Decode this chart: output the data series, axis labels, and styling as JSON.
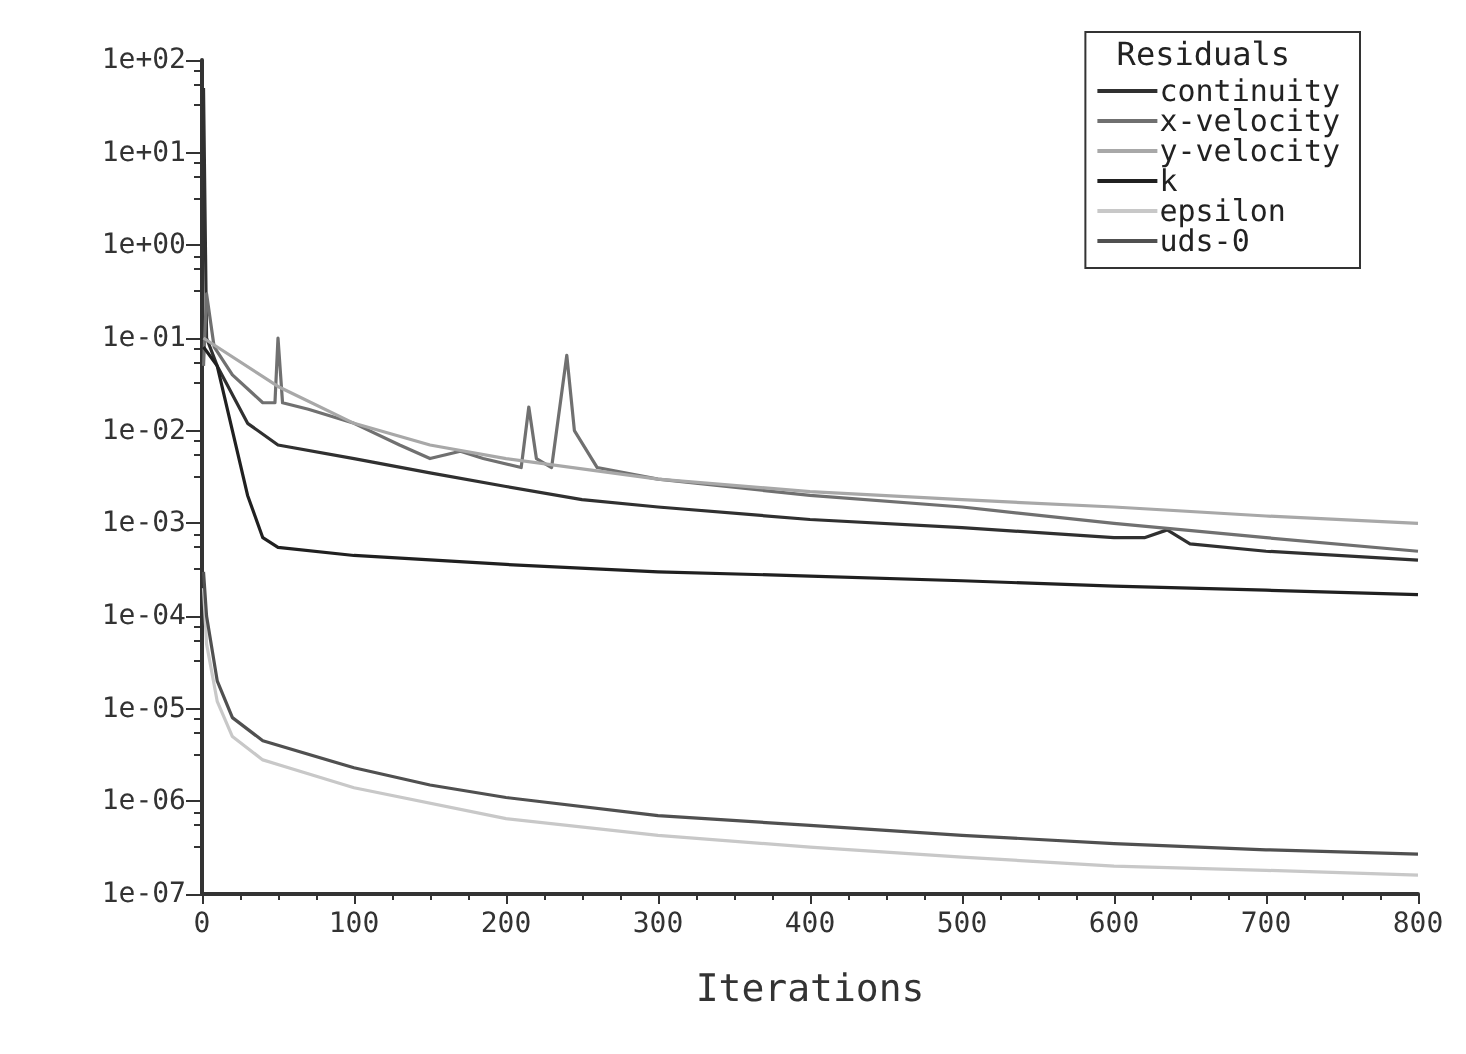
{
  "chart_data": {
    "type": "line",
    "xlabel": "Iterations",
    "legend_title": "Residuals",
    "legend": "top right",
    "grid": false,
    "log": "y",
    "marker": "none",
    "line_style": "solid",
    "xlim": [
      0,
      800
    ],
    "xticks": [
      0,
      100,
      200,
      300,
      400,
      500,
      600,
      700,
      800
    ],
    "ylim": [
      1e-07,
      100
    ],
    "yticks": [
      {
        "value": 100,
        "label": "1e+02"
      },
      {
        "value": 10,
        "label": "1e+01"
      },
      {
        "value": 1,
        "label": "1e+00"
      },
      {
        "value": 0.1,
        "label": "1e-01"
      },
      {
        "value": 0.01,
        "label": "1e-02"
      },
      {
        "value": 0.001,
        "label": "1e-03"
      },
      {
        "value": 0.0001,
        "label": "1e-04"
      },
      {
        "value": 1e-05,
        "label": "1e-05"
      },
      {
        "value": 1e-06,
        "label": "1e-06"
      },
      {
        "value": 1e-07,
        "label": "1e-07"
      }
    ],
    "series": [
      {
        "name": "continuity",
        "color": "#303030",
        "x": [
          1,
          3,
          10,
          30,
          50,
          100,
          150,
          200,
          250,
          300,
          400,
          500,
          600,
          620,
          635,
          650,
          700,
          800
        ],
        "values": [
          50,
          0.1,
          0.05,
          0.012,
          0.007,
          0.005,
          0.0035,
          0.0025,
          0.0018,
          0.0015,
          0.0011,
          0.0009,
          0.0007,
          0.0007,
          0.00085,
          0.0006,
          0.0005,
          0.0004
        ]
      },
      {
        "name": "x-velocity",
        "color": "#707070",
        "x": [
          1,
          3,
          8,
          20,
          40,
          48,
          50,
          53,
          70,
          100,
          130,
          150,
          170,
          185,
          210,
          215,
          220,
          230,
          240,
          245,
          260,
          300,
          400,
          500,
          600,
          700,
          800
        ],
        "values": [
          0.05,
          0.3,
          0.08,
          0.04,
          0.02,
          0.02,
          0.1,
          0.02,
          0.017,
          0.012,
          0.007,
          0.005,
          0.006,
          0.005,
          0.004,
          0.018,
          0.005,
          0.004,
          0.065,
          0.01,
          0.004,
          0.003,
          0.002,
          0.0015,
          0.001,
          0.0007,
          0.0005
        ]
      },
      {
        "name": "y-velocity",
        "color": "#a8a8a8",
        "x": [
          1,
          10,
          50,
          100,
          150,
          200,
          300,
          400,
          500,
          600,
          700,
          800
        ],
        "values": [
          0.1,
          0.08,
          0.03,
          0.012,
          0.007,
          0.005,
          0.003,
          0.0022,
          0.0018,
          0.0015,
          0.0012,
          0.001
        ]
      },
      {
        "name": "k",
        "color": "#202020",
        "x": [
          1,
          10,
          20,
          30,
          40,
          50,
          100,
          200,
          300,
          400,
          500,
          600,
          700,
          800
        ],
        "values": [
          0.08,
          0.05,
          0.01,
          0.002,
          0.0007,
          0.00055,
          0.00045,
          0.00036,
          0.0003,
          0.00027,
          0.00024,
          0.00021,
          0.00019,
          0.00017
        ]
      },
      {
        "name": "epsilon",
        "color": "#c8c8c8",
        "x": [
          1,
          3,
          10,
          20,
          40,
          100,
          200,
          300,
          400,
          500,
          600,
          700,
          800
        ],
        "values": [
          0.0002,
          5e-05,
          1.2e-05,
          5e-06,
          2.8e-06,
          1.4e-06,
          6.5e-07,
          4.3e-07,
          3.2e-07,
          2.5e-07,
          2e-07,
          1.8e-07,
          1.6e-07
        ]
      },
      {
        "name": "uds-0",
        "color": "#505050",
        "x": [
          1,
          3,
          10,
          20,
          40,
          100,
          150,
          200,
          300,
          400,
          500,
          600,
          700,
          800
        ],
        "values": [
          0.0003,
          0.0001,
          2e-05,
          8e-06,
          4.5e-06,
          2.3e-06,
          1.5e-06,
          1.1e-06,
          7e-07,
          5.5e-07,
          4.3e-07,
          3.5e-07,
          3e-07,
          2.7e-07
        ]
      }
    ]
  }
}
